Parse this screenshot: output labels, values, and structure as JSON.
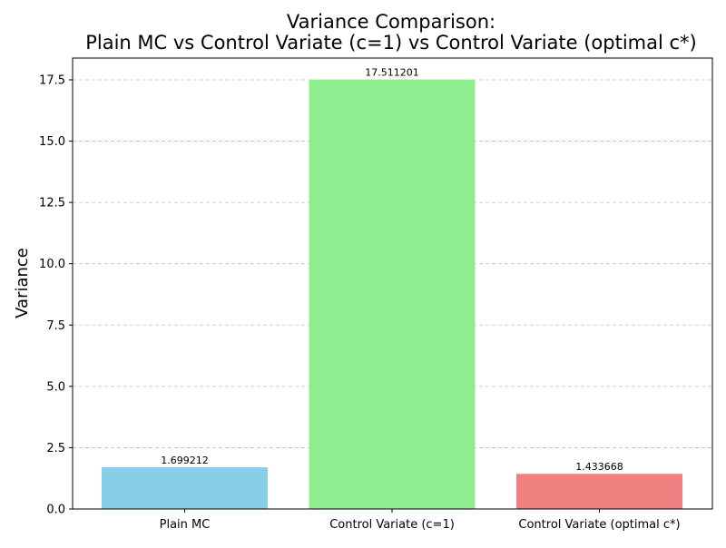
{
  "chart_data": {
    "type": "bar",
    "title_line1": "Variance Comparison:",
    "title_line2": "Plain MC vs Control Variate (c=1) vs Control Variate (optimal c*)",
    "xlabel": "",
    "ylabel": "Variance",
    "categories": [
      "Plain MC",
      "Control Variate (c=1)",
      "Control Variate (optimal c*)"
    ],
    "values": [
      1.699212,
      17.511201,
      1.433668
    ],
    "value_labels": [
      "1.699212",
      "17.511201",
      "1.433668"
    ],
    "colors": [
      "#87ceeb",
      "#90ee90",
      "#f08080"
    ],
    "ylim": [
      0,
      18.387
    ],
    "yticks": [
      0.0,
      2.5,
      5.0,
      7.5,
      10.0,
      12.5,
      15.0,
      17.5
    ],
    "ytick_labels": [
      "0.0",
      "2.5",
      "5.0",
      "7.5",
      "10.0",
      "12.5",
      "15.0",
      "17.5"
    ],
    "grid": "y-dashed"
  }
}
